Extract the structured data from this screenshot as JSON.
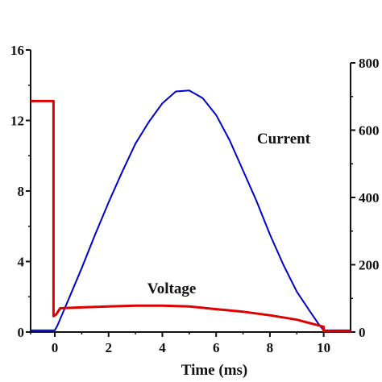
{
  "chart_data": {
    "type": "line",
    "xlabel": "Time (ms)",
    "x_ticks": [
      "0",
      "2",
      "4",
      "6",
      "8",
      "10"
    ],
    "xlim": [
      -0.9,
      11
    ],
    "y_left": {
      "ticks": [
        "0",
        "4",
        "8",
        "12",
        "16"
      ],
      "ylim": [
        0,
        16
      ]
    },
    "y_right": {
      "ticks": [
        "0",
        "200",
        "400",
        "600",
        "800"
      ],
      "ylim": [
        0,
        800
      ]
    },
    "annotations": [
      "Current",
      "Voltage"
    ],
    "series": [
      {
        "axis": "right",
        "color": "#0000cc",
        "x": [
          -0.9,
          -0.1,
          0.0,
          0.1,
          0.5,
          1.0,
          1.5,
          2.0,
          2.5,
          3.0,
          3.5,
          4.0,
          4.5,
          5.0,
          5.5,
          6.0,
          6.5,
          7.0,
          7.5,
          8.0,
          8.5,
          9.0,
          9.5,
          9.8,
          10.0,
          10.5,
          11.0
        ],
        "y": [
          5,
          5,
          5,
          20,
          95,
          190,
          290,
          385,
          475,
          560,
          625,
          680,
          715,
          718,
          695,
          645,
          570,
          480,
          390,
          290,
          200,
          120,
          60,
          25,
          5,
          5,
          5
        ]
      },
      {
        "axis": "left",
        "color": "#dd0000",
        "x": [
          -0.9,
          -0.05,
          -0.05,
          0.05,
          0.2,
          1,
          2,
          3,
          4,
          5,
          6,
          7,
          8,
          9,
          9.5,
          10.0,
          10.0,
          11.0
        ],
        "y": [
          13.1,
          13.1,
          0.9,
          1.0,
          1.35,
          1.4,
          1.45,
          1.5,
          1.5,
          1.45,
          1.3,
          1.15,
          0.95,
          0.7,
          0.5,
          0.3,
          0.05,
          0.05
        ]
      }
    ]
  }
}
